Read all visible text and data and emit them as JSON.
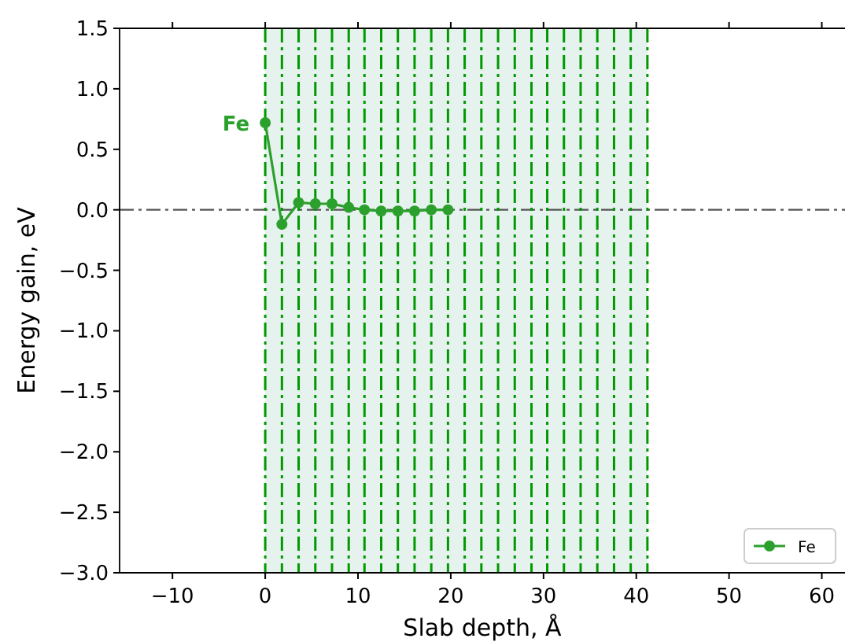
{
  "chart_data": {
    "type": "line",
    "xlabel": "Slab depth, Å",
    "ylabel": "Energy gain, eV",
    "series": [
      {
        "name": "Fe",
        "color": "#2ca02c",
        "x": [
          0,
          1.8,
          3.6,
          5.4,
          7.2,
          9.0,
          10.7,
          12.5,
          14.3,
          16.1,
          17.9,
          19.7
        ],
        "values": [
          0.72,
          -0.12,
          0.06,
          0.05,
          0.05,
          0.02,
          0,
          -0.01,
          -0.01,
          -0.01,
          0,
          0
        ]
      }
    ],
    "xlim": [
      -15.7,
      62.5
    ],
    "ylim": [
      -3.0,
      1.5
    ],
    "xticks": [
      {
        "value": -10,
        "label": "−10"
      },
      0,
      10,
      20,
      30,
      40,
      50,
      60
    ],
    "yticks": [
      {
        "value": 1.5,
        "label": "1.5"
      },
      {
        "value": 1,
        "label": "1.0"
      },
      {
        "value": 0.5,
        "label": "0.5"
      },
      {
        "value": 0,
        "label": "0.0"
      },
      {
        "value": -0.5,
        "label": "−0.5"
      },
      {
        "value": -1,
        "label": "−1.0"
      },
      {
        "value": -1.5,
        "label": "−1.5"
      },
      {
        "value": -2,
        "label": "−2.0"
      },
      {
        "value": -2.5,
        "label": "−2.5"
      },
      {
        "value": -3,
        "label": "−3.0"
      }
    ],
    "ref_lines": [
      {
        "axis": "y",
        "value": 0,
        "color": "#555555",
        "line_style": "dashed"
      },
      {
        "axis": "x",
        "value": 0,
        "color": "#009900",
        "line_style": "dashed"
      },
      {
        "axis": "x",
        "value": 1.8,
        "color": "#009900",
        "line_style": "dashed"
      },
      {
        "axis": "x",
        "value": 3.6,
        "color": "#009900",
        "line_style": "dashed"
      },
      {
        "axis": "x",
        "value": 5.4,
        "color": "#009900",
        "line_style": "dashed"
      },
      {
        "axis": "x",
        "value": 7.2,
        "color": "#009900",
        "line_style": "dashed"
      },
      {
        "axis": "x",
        "value": 9.0,
        "color": "#009900",
        "line_style": "dashed"
      },
      {
        "axis": "x",
        "value": 10.7,
        "color": "#009900",
        "line_style": "dashed"
      },
      {
        "axis": "x",
        "value": 12.5,
        "color": "#009900",
        "line_style": "dashed"
      },
      {
        "axis": "x",
        "value": 14.3,
        "color": "#009900",
        "line_style": "dashed"
      },
      {
        "axis": "x",
        "value": 16.1,
        "color": "#009900",
        "line_style": "dashed"
      },
      {
        "axis": "x",
        "value": 17.9,
        "color": "#009900",
        "line_style": "dashed"
      },
      {
        "axis": "x",
        "value": 19.7,
        "color": "#009900",
        "line_style": "dashed"
      },
      {
        "axis": "x",
        "value": 21.5,
        "color": "#009900",
        "line_style": "dashed"
      },
      {
        "axis": "x",
        "value": 23.3,
        "color": "#009900",
        "line_style": "dashed"
      },
      {
        "axis": "x",
        "value": 25.1,
        "color": "#009900",
        "line_style": "dashed"
      },
      {
        "axis": "x",
        "value": 26.9,
        "color": "#009900",
        "line_style": "dashed"
      },
      {
        "axis": "x",
        "value": 28.7,
        "color": "#009900",
        "line_style": "dashed"
      },
      {
        "axis": "x",
        "value": 30.4,
        "color": "#009900",
        "line_style": "dashed"
      },
      {
        "axis": "x",
        "value": 32.2,
        "color": "#009900",
        "line_style": "dashed"
      },
      {
        "axis": "x",
        "value": 34.0,
        "color": "#009900",
        "line_style": "dashed"
      },
      {
        "axis": "x",
        "value": 35.8,
        "color": "#009900",
        "line_style": "dashed"
      },
      {
        "axis": "x",
        "value": 37.6,
        "color": "#009900",
        "line_style": "dashed"
      },
      {
        "axis": "x",
        "value": 39.4,
        "color": "#009900",
        "line_style": "dashed"
      },
      {
        "axis": "x",
        "value": 41.2,
        "color": "#009900",
        "line_style": "dashed"
      }
    ],
    "bands": [
      {
        "axis": "x",
        "from": 0,
        "to": 41.2,
        "color": "#e6f2ee"
      }
    ],
    "annotations": [
      {
        "text": "Fe",
        "x": 0,
        "y": 0.72
      }
    ],
    "legend": "bottom right",
    "marker": "circle",
    "line_style": "solid",
    "grid": false
  }
}
